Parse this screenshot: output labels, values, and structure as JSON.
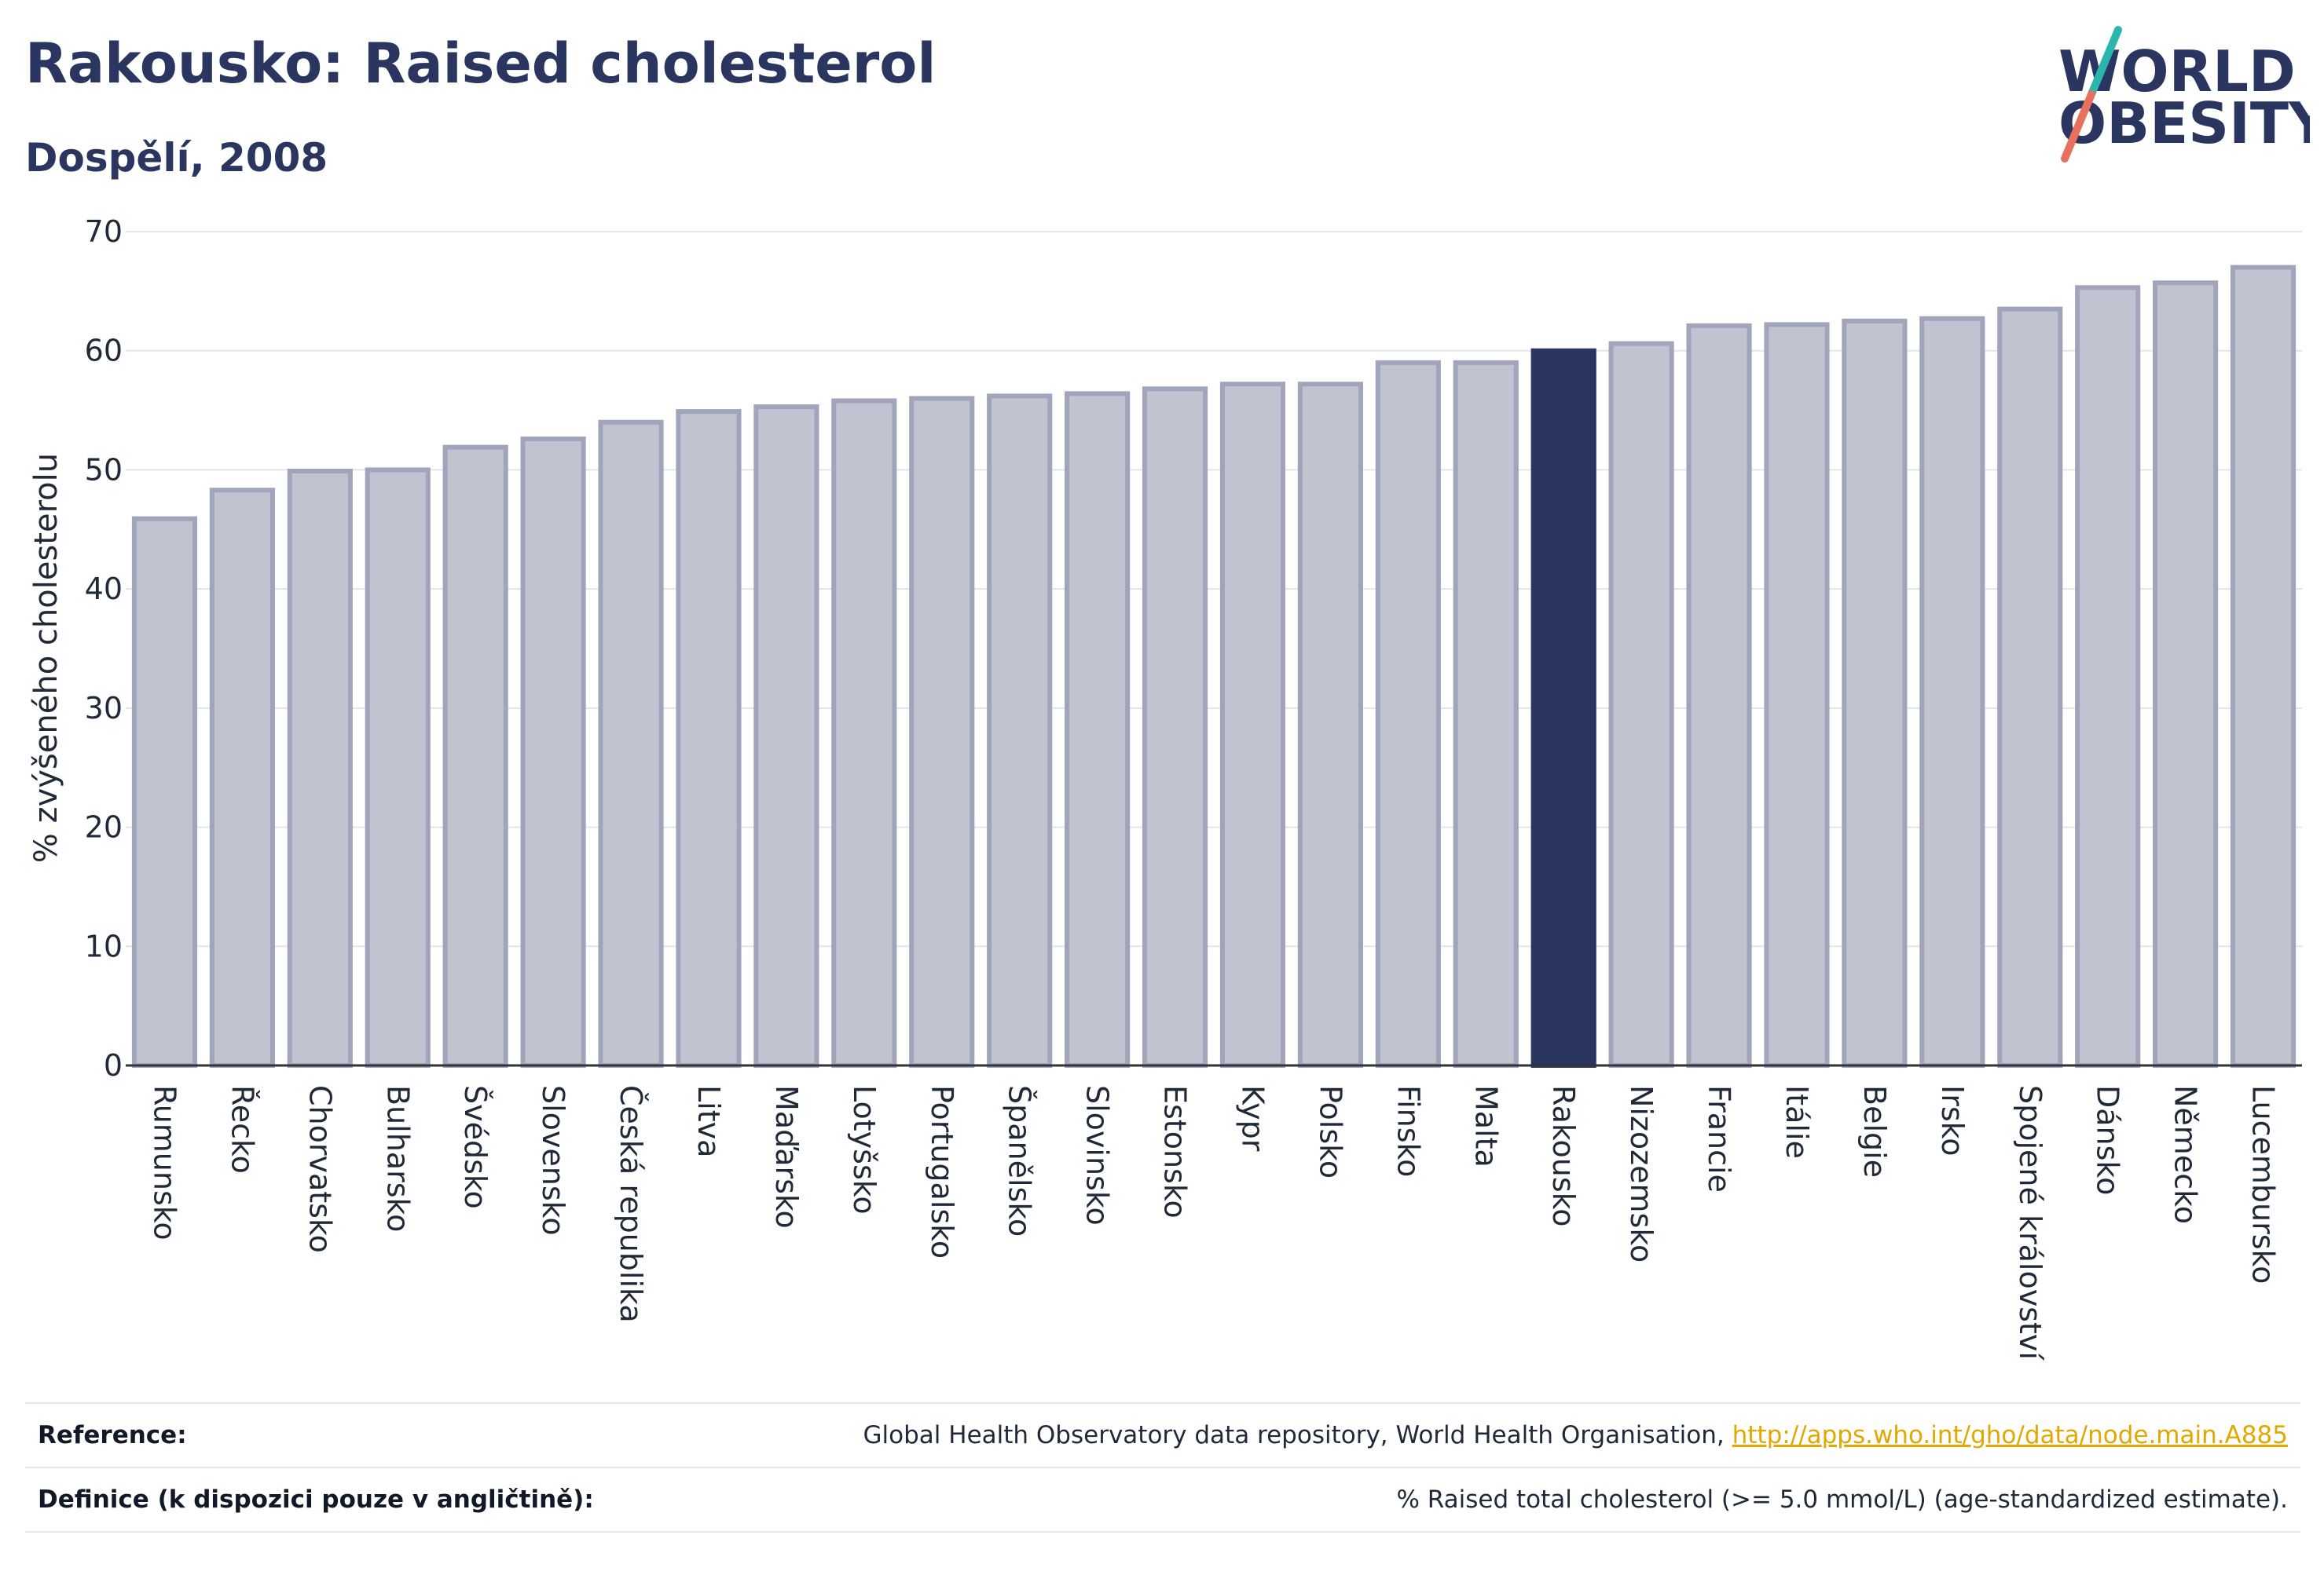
{
  "header": {
    "title": "Rakousko: Raised cholesterol",
    "subtitle": "Dospělí, 2008"
  },
  "logo": {
    "line1": "WORLD",
    "line2": "OBESITY"
  },
  "colors": {
    "highlight_bar": "#2a3560",
    "default_bar_fill": "#c0c3d0",
    "default_bar_stroke": "#a0a5bb",
    "title_color": "#2a3560",
    "link_color": "#e0a800",
    "logo_slash_teal": "#2bb5ad",
    "logo_slash_coral": "#e8705f"
  },
  "chart_data": {
    "type": "bar",
    "ylabel": "% zvýšeného cholesterolu",
    "ylim": [
      0,
      70
    ],
    "yticks": [
      0,
      10,
      20,
      30,
      40,
      50,
      60,
      70
    ],
    "grid": true,
    "highlight": "Rakousko",
    "categories": [
      "Rumunsko",
      "Řecko",
      "Chorvatsko",
      "Bulharsko",
      "Švédsko",
      "Slovensko",
      "Česká republika",
      "Litva",
      "Maďarsko",
      "Lotyšsko",
      "Portugalsko",
      "Španělsko",
      "Slovinsko",
      "Estonsko",
      "Kypr",
      "Polsko",
      "Finsko",
      "Malta",
      "Rakousko",
      "Nizozemsko",
      "Francie",
      "Itálie",
      "Belgie",
      "Irsko",
      "Spojené království",
      "Dánsko",
      "Německo",
      "Lucembursko"
    ],
    "values": [
      45.9,
      48.3,
      49.9,
      50.0,
      51.9,
      52.6,
      54.0,
      54.9,
      55.3,
      55.8,
      56.0,
      56.2,
      56.4,
      56.8,
      57.2,
      57.2,
      59.0,
      59.0,
      60.0,
      60.6,
      62.1,
      62.2,
      62.5,
      62.7,
      63.5,
      65.3,
      65.7,
      67.0
    ]
  },
  "footer": {
    "reference_label": "Reference:",
    "reference_text": "Global Health Observatory data repository, World Health Organisation,",
    "reference_link": "http://apps.who.int/gho/data/node.main.A885",
    "definition_label": "Definice (k dispozici pouze v angličtině):",
    "definition_text": "% Raised total cholesterol (>= 5.0 mmol/L) (age-standardized estimate)."
  }
}
